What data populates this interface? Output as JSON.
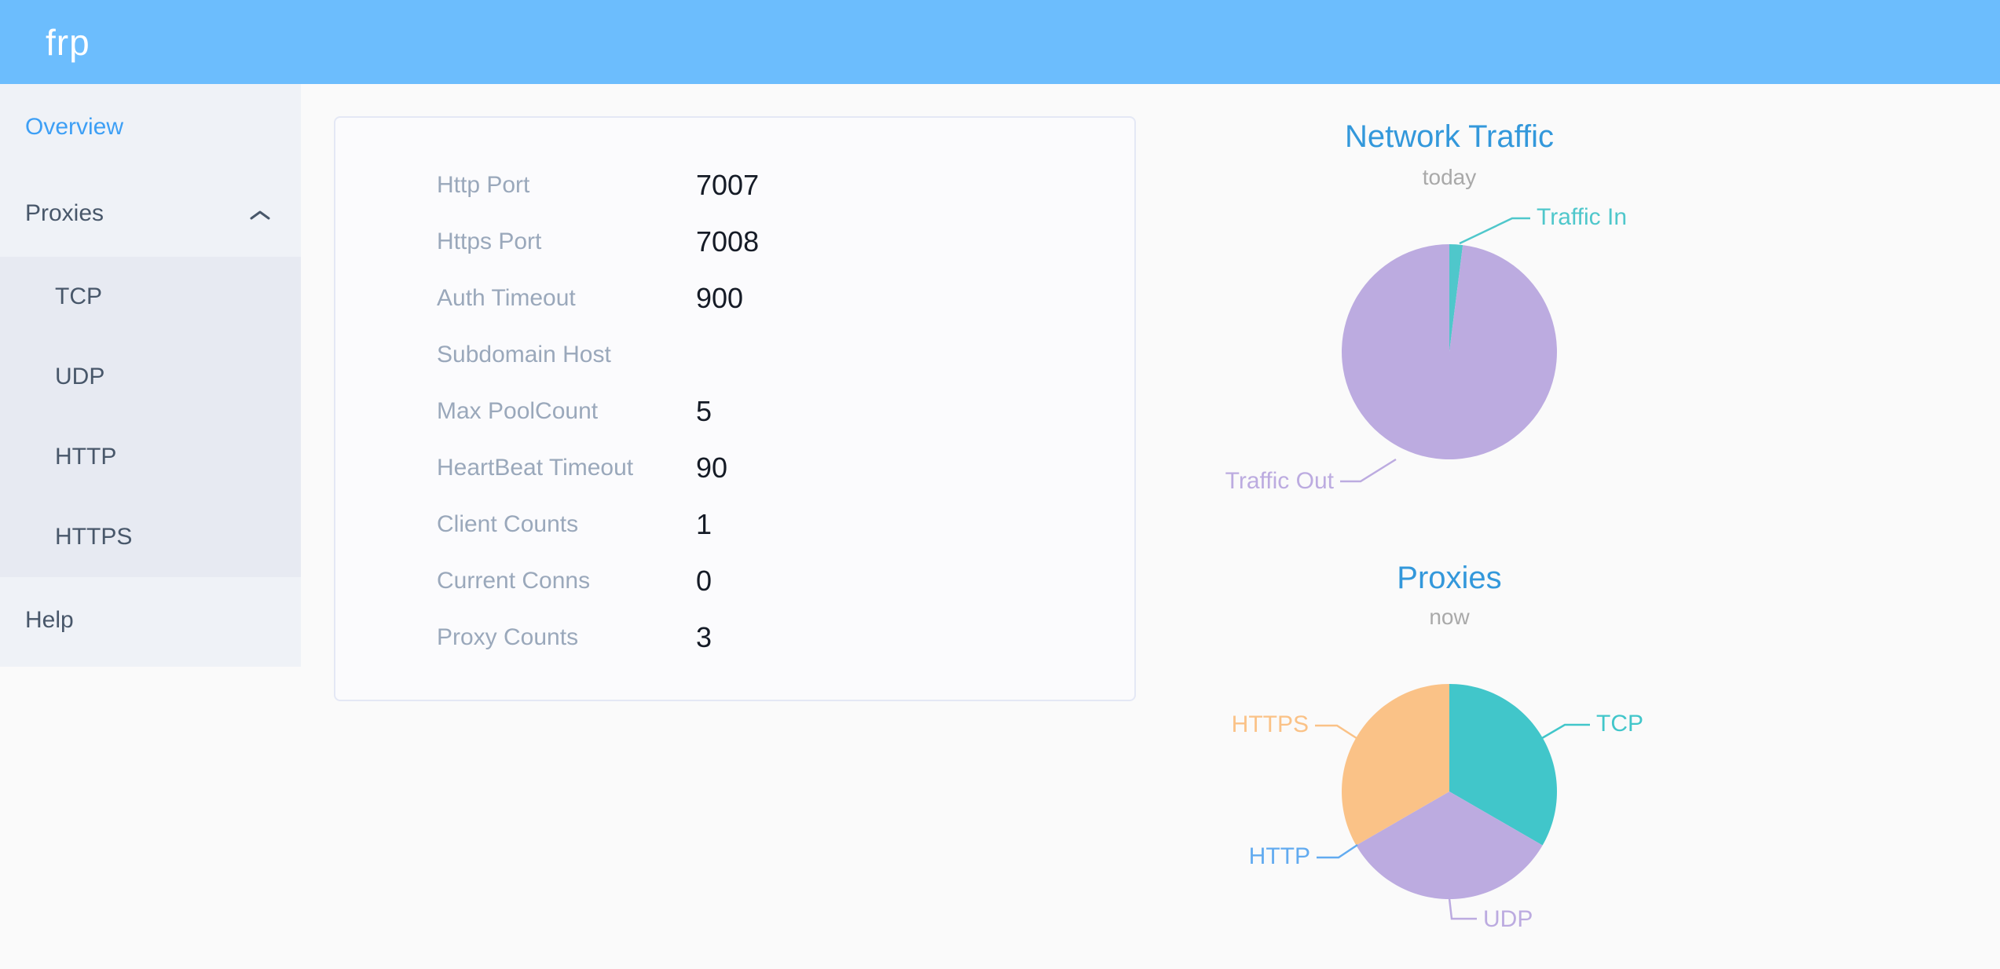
{
  "header": {
    "logo_text": "frp",
    "background_color": "#6cbdfd"
  },
  "sidebar": {
    "text_color": "#48576a",
    "active_color": "#3d9ff5",
    "items_top": [
      {
        "label": "Overview",
        "state": "active"
      },
      {
        "label": "Proxies",
        "state": "expanded"
      }
    ],
    "submenu_items": [
      {
        "label": "TCP"
      },
      {
        "label": "UDP"
      },
      {
        "label": "HTTP"
      },
      {
        "label": "HTTPS"
      }
    ],
    "items_bottom": [
      {
        "label": "Help"
      }
    ]
  },
  "server_info": {
    "rows": [
      {
        "label": "Http Port",
        "value": "7007"
      },
      {
        "label": "Https Port",
        "value": "7008"
      },
      {
        "label": "Auth Timeout",
        "value": "900"
      },
      {
        "label": "Subdomain Host",
        "value": ""
      },
      {
        "label": "Max PoolCount",
        "value": "5"
      },
      {
        "label": "HeartBeat Timeout",
        "value": "90"
      },
      {
        "label": "Client Counts",
        "value": "1"
      },
      {
        "label": "Current Conns",
        "value": "0"
      },
      {
        "label": "Proxy Counts",
        "value": "3"
      }
    ]
  },
  "chart_data": [
    {
      "type": "pie",
      "title": "Network Traffic",
      "subtitle": "today",
      "labels": [
        "Traffic In",
        "Traffic Out"
      ],
      "values": [
        2,
        98
      ],
      "values_estimated": true,
      "colors": [
        "#4fc7cb",
        "#bcabe0"
      ],
      "title_color": "#3398db",
      "subtitle_color": "#a9a9a9",
      "label_position": "outside-callout"
    },
    {
      "type": "pie",
      "title": "Proxies",
      "subtitle": "now",
      "labels": [
        "TCP",
        "UDP",
        "HTTP",
        "HTTPS"
      ],
      "values": [
        1,
        1,
        0,
        1
      ],
      "colors": [
        "#41c6ca",
        "#bcabe0",
        "#62abf0",
        "#fac287"
      ],
      "title_color": "#3398db",
      "subtitle_color": "#a9a9a9",
      "label_position": "outside-callout"
    }
  ]
}
